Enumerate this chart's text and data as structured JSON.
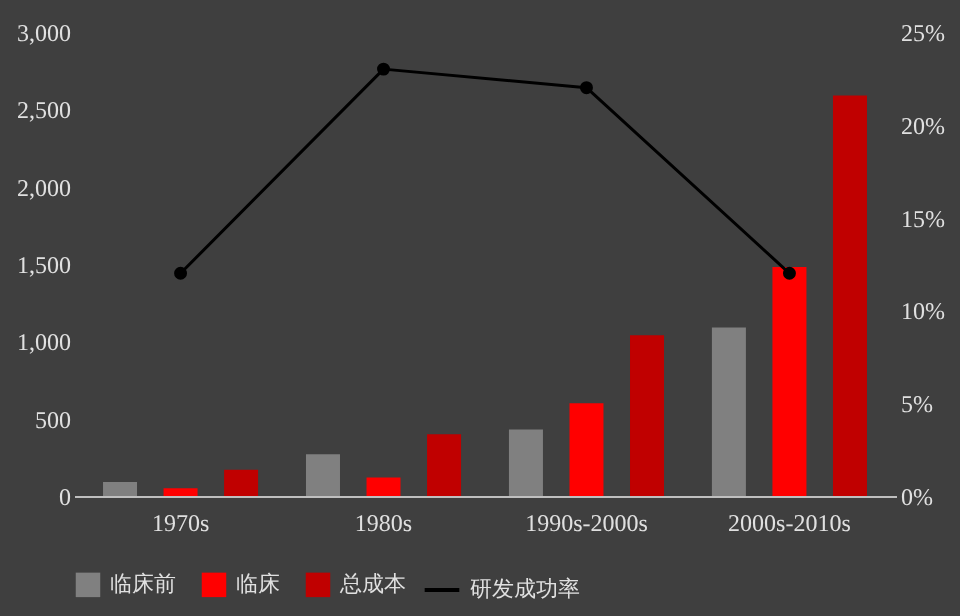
{
  "chart_data": {
    "type": "bar",
    "categories": [
      "1970s",
      "1980s",
      "1990s-2000s",
      "2000s-2010s"
    ],
    "series": [
      {
        "name": "临床前",
        "color": "#808080",
        "values": [
          90,
          270,
          430,
          1090
        ]
      },
      {
        "name": "临床",
        "color": "#ff0000",
        "values": [
          50,
          120,
          600,
          1480
        ]
      },
      {
        "name": "总成本",
        "color": "#c00000",
        "values": [
          170,
          400,
          1040,
          2590
        ]
      },
      {
        "name": "研发成功率",
        "color": "#000000",
        "type": "line",
        "axis": "y2",
        "marker": "circle",
        "values": [
          12.0,
          23.0,
          22.0,
          12.0
        ]
      }
    ],
    "ylim": [
      0,
      3000
    ],
    "yticks": [
      {
        "value": 0,
        "label": "0"
      },
      {
        "value": 500,
        "label": "500"
      },
      {
        "value": 1000,
        "label": "1,000"
      },
      {
        "value": 1500,
        "label": "1,500"
      },
      {
        "value": 2000,
        "label": "2,000"
      },
      {
        "value": 2500,
        "label": "2,500"
      },
      {
        "value": 3000,
        "label": "3,000"
      }
    ],
    "y2lim": [
      0,
      25
    ],
    "y2ticks": [
      {
        "value": 0,
        "label": "0%"
      },
      {
        "value": 5,
        "label": "5%"
      },
      {
        "value": 10,
        "label": "10%"
      },
      {
        "value": 15,
        "label": "15%"
      },
      {
        "value": 20,
        "label": "20%"
      },
      {
        "value": 25,
        "label": "25%"
      }
    ],
    "grid": false,
    "legend": "bottom"
  }
}
